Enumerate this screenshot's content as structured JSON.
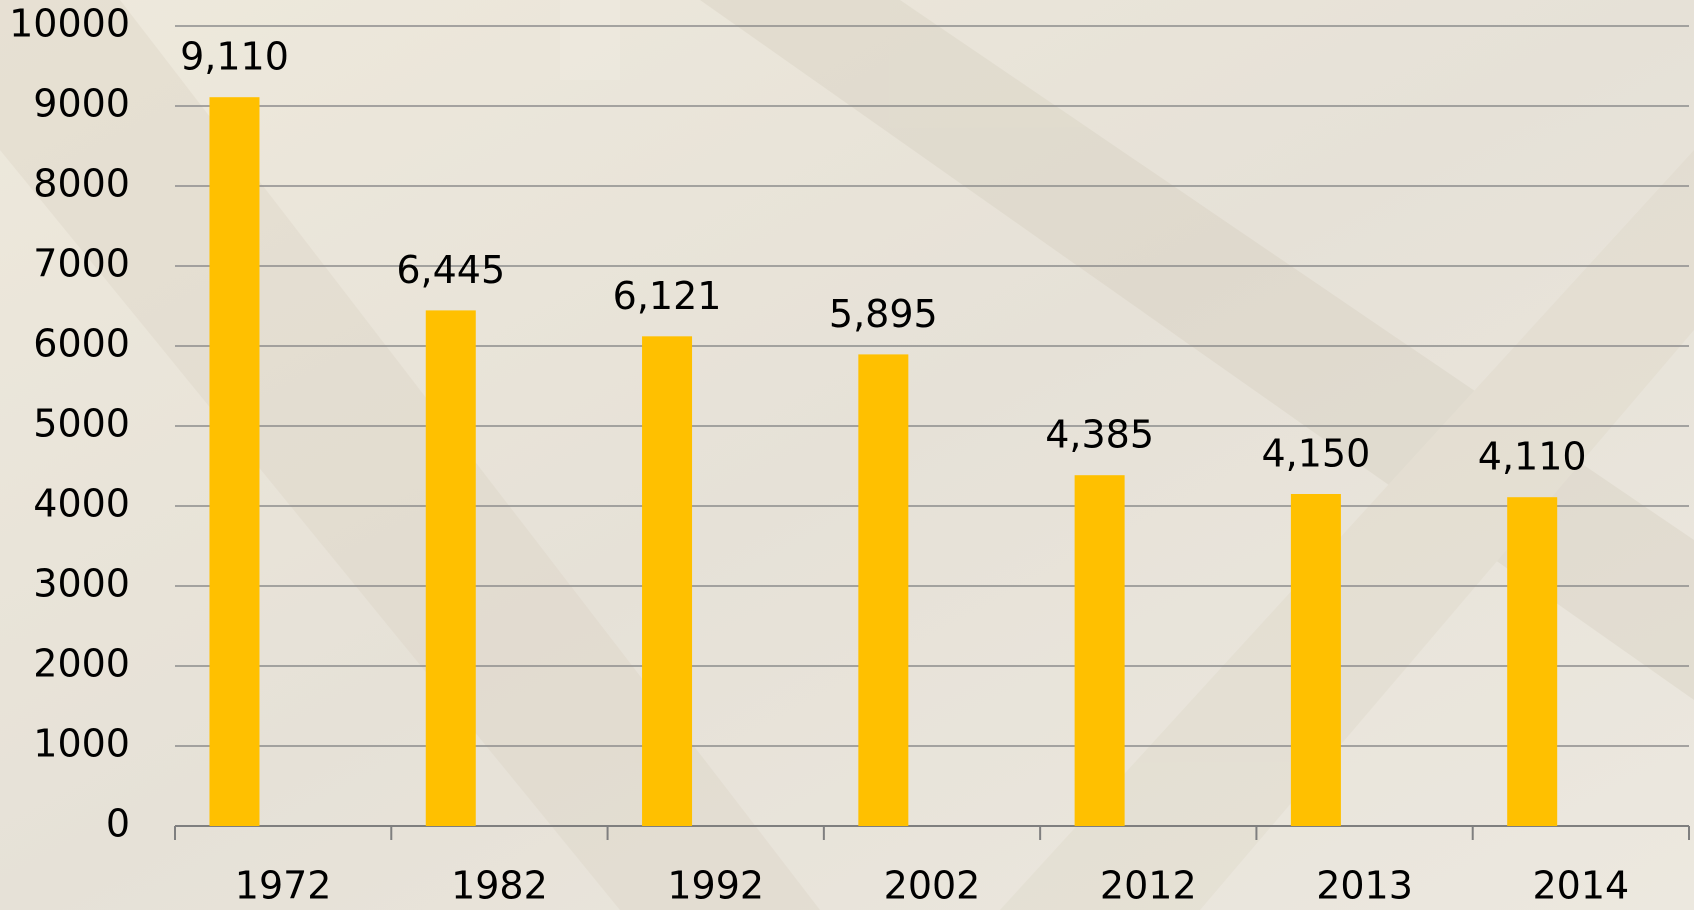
{
  "chart_data": {
    "type": "bar",
    "categories": [
      "1972",
      "1982",
      "1992",
      "2002",
      "2012",
      "2013",
      "2014"
    ],
    "values": [
      9110,
      6445,
      6121,
      5895,
      4385,
      4150,
      4110
    ],
    "value_labels": [
      "9,110",
      "6,445",
      "6,121",
      "5,895",
      "4,385",
      "4,150",
      "4,110"
    ],
    "color": "#ffc000",
    "ylim": [
      0,
      10000
    ],
    "yticks": [
      0,
      1000,
      2000,
      3000,
      4000,
      5000,
      6000,
      7000,
      8000,
      9000,
      10000
    ],
    "grid": true
  }
}
